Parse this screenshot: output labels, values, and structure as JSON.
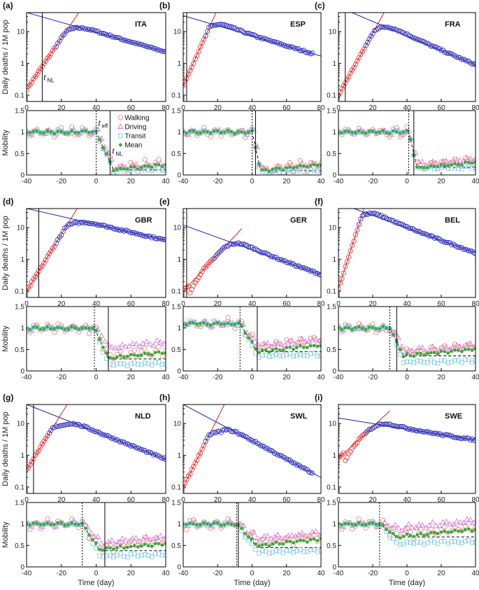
{
  "chart_data": {
    "type": "scatter",
    "axis_labels": {
      "deaths_ylabel": "Daily deaths / 1M pop",
      "mobility_ylabel": "Mobility",
      "xlabel": "Time (day)"
    },
    "deaths_axis": {
      "xlim": [
        0,
        80
      ],
      "xticks": [
        0,
        20,
        40,
        60,
        80
      ],
      "ylim_log10": [
        -1.2,
        1.6
      ],
      "yticks": [
        0.1,
        1,
        10
      ],
      "ytick_labels": [
        "0.1",
        "1",
        "10"
      ]
    },
    "mobility_axis": {
      "xlim": [
        -40,
        40
      ],
      "xticks": [
        -40,
        -20,
        0,
        20,
        40
      ],
      "ylim": [
        0,
        1.5
      ],
      "yticks": [
        0,
        0.5,
        1,
        1.5
      ],
      "ytick_labels": [
        "0",
        "0.5",
        "1",
        "1.5"
      ]
    },
    "legend": [
      {
        "name": "Walking",
        "marker": "circle",
        "color": "#e8836a"
      },
      {
        "name": "Driving",
        "marker": "triangle",
        "color": "#d66ae0"
      },
      {
        "name": "Transit",
        "marker": "square",
        "color": "#7ac8e8"
      },
      {
        "name": "Mean",
        "marker": "dot",
        "color": "#3da83d"
      }
    ],
    "colors": {
      "growth": "#e02020",
      "decay": "#2020c0",
      "deaths_marker": "#2a2ab8",
      "growth_marker": "#e03030"
    },
    "annotations": {
      "t_nl": "t",
      "t_nl_sub": "NL",
      "t_eff": "t",
      "t_eff_sub": "eff"
    },
    "panels": [
      {
        "label": "(a)",
        "country": "ITA",
        "tnl_day": 9,
        "peak_day": 30,
        "peak_value": 13,
        "start_value": 0.15,
        "end_value": 2.6,
        "decay_intercept": 40,
        "decay_end": 2.3,
        "deaths_end_day": 80,
        "mob_pre": 1.0,
        "mob_post": 0.12,
        "teff": 0,
        "tnl_mob": 8,
        "drop_width": 10,
        "ranks": [
          0.1,
          0.12,
          0.15,
          0.16
        ]
      },
      {
        "label": "(b)",
        "country": "ESP",
        "tnl_day": 2,
        "peak_day": 22,
        "peak_value": 17,
        "start_value": 0.2,
        "end_value": 2.4,
        "decay_intercept": 32,
        "decay_end": 1.7,
        "deaths_end_day": 75,
        "mob_pre": 1.0,
        "mob_post": 0.1,
        "teff": 0,
        "tnl_mob": 2,
        "drop_width": 5,
        "ranks": [
          0.07,
          0.1,
          0.12,
          0.12
        ]
      },
      {
        "label": "(c)",
        "country": "FRA",
        "tnl_day": 4,
        "peak_day": 28,
        "peak_value": 14,
        "start_value": 0.1,
        "end_value": 0.95,
        "decay_intercept": 60,
        "decay_end": 0.9,
        "deaths_end_day": 80,
        "mob_pre": 1.0,
        "mob_post": 0.18,
        "teff": 1,
        "tnl_mob": 4,
        "drop_width": 5,
        "ranks": [
          0.15,
          0.16,
          0.2,
          0.25
        ]
      },
      {
        "label": "(d)",
        "country": "GBR",
        "tnl_day": 7,
        "peak_day": 30,
        "peak_value": 14,
        "start_value": 0.1,
        "end_value": 4.5,
        "decay_intercept": 40,
        "decay_end": 4.0,
        "deaths_end_day": 80,
        "mob_pre": 1.0,
        "mob_post": 0.28,
        "teff": -1,
        "tnl_mob": 7,
        "drop_width": 8,
        "ranks": [
          0.15,
          0.3,
          0.35,
          0.55
        ]
      },
      {
        "label": "(e)",
        "country": "GER",
        "tnl_day": 2,
        "peak_day": 32,
        "peak_value": 3.2,
        "start_value": 0.1,
        "end_value": 0.35,
        "decay_intercept": 12,
        "decay_end": 0.33,
        "deaths_end_day": 80,
        "mob_pre": 1.1,
        "mob_post": 0.45,
        "teff": -7,
        "tnl_mob": 3,
        "drop_width": 10,
        "ranks": [
          0.35,
          0.45,
          0.55,
          0.58
        ]
      },
      {
        "label": "(f)",
        "country": "BEL",
        "tnl_day": -6,
        "peak_day": 20,
        "peak_value": 28,
        "start_value": 0.12,
        "end_value": 1.7,
        "decay_intercept": 60,
        "decay_end": 1.6,
        "deaths_end_day": 80,
        "mob_pre": 1.0,
        "mob_post": 0.35,
        "teff": -10,
        "tnl_mob": -6,
        "drop_width": 8,
        "ranks": [
          0.2,
          0.35,
          0.42,
          0.45
        ]
      },
      {
        "label": "(g)",
        "country": "NLD",
        "tnl_day": 4,
        "peak_day": 22,
        "peak_value": 9,
        "start_value": 0.35,
        "end_value": 0.85,
        "decay_intercept": 40,
        "decay_end": 0.75,
        "deaths_end_day": 80,
        "mob_pre": 1.0,
        "mob_post": 0.38,
        "teff": -8,
        "tnl_mob": 5,
        "drop_width": 10,
        "ranks": [
          0.25,
          0.4,
          0.45,
          0.55
        ]
      },
      {
        "label": "(h)",
        "country": "SWL",
        "tnl_day": -8,
        "peak_day": 22,
        "peak_value": 5.5,
        "start_value": 0.1,
        "end_value": 0.18,
        "decay_intercept": 40,
        "decay_end": 0.2,
        "deaths_end_day": 75,
        "mob_pre": 1.0,
        "mob_post": 0.45,
        "teff": -9,
        "tnl_mob": -8,
        "drop_width": 12,
        "ranks": [
          0.35,
          0.5,
          0.55,
          0.65
        ]
      },
      {
        "label": "(i)",
        "country": "SWE",
        "tnl_day": -16,
        "peak_day": 28,
        "peak_value": 10,
        "start_value": 0.8,
        "end_value": 3.5,
        "decay_intercept": 15,
        "decay_end": 3.0,
        "deaths_end_day": 80,
        "mob_pre": 1.0,
        "mob_post": 0.7,
        "teff": -16,
        "tnl_mob": -16,
        "drop_width": 10,
        "ranks": [
          0.55,
          0.7,
          0.75,
          0.9
        ]
      }
    ]
  }
}
